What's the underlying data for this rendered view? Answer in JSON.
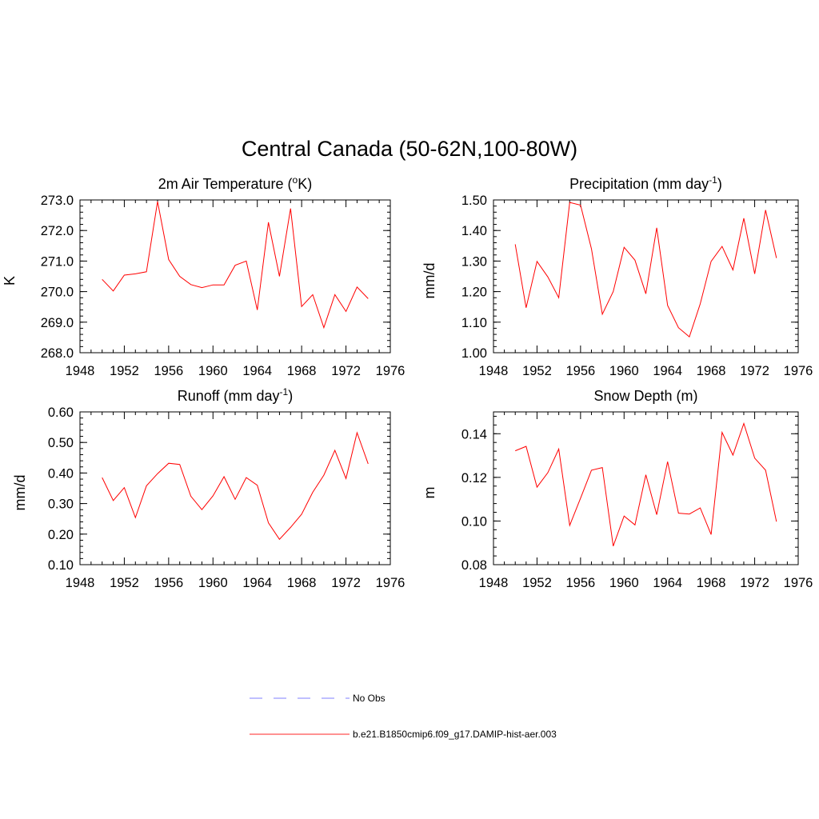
{
  "figure": {
    "title": "Central Canada (50-62N,100-80W)"
  },
  "chart_data": [
    {
      "type": "line",
      "title_main": "2m Air Temperature (",
      "title_sup": "o",
      "title_tail": "K)",
      "ylabel": "K",
      "xlim": [
        1948,
        1976
      ],
      "ylim": [
        268.0,
        273.0
      ],
      "xticks": [
        1948,
        1952,
        1956,
        1960,
        1964,
        1968,
        1972,
        1976
      ],
      "xtick_labels": [
        "1948",
        "1952",
        "1956",
        "1960",
        "1964",
        "1968",
        "1972",
        "1976"
      ],
      "yticks": [
        268.0,
        269.0,
        270.0,
        271.0,
        272.0,
        273.0
      ],
      "ytick_labels": [
        "268.0",
        "269.0",
        "270.0",
        "271.0",
        "272.0",
        "273.0"
      ],
      "yminor": 0.2,
      "x": [
        1950,
        1951,
        1952,
        1953,
        1954,
        1955,
        1956,
        1957,
        1958,
        1959,
        1960,
        1961,
        1962,
        1963,
        1964,
        1965,
        1966,
        1967,
        1968,
        1969,
        1970,
        1971,
        1972,
        1973,
        1974
      ],
      "values": [
        270.4,
        270.02,
        270.54,
        270.58,
        270.65,
        272.95,
        271.05,
        270.5,
        270.23,
        270.13,
        270.22,
        270.22,
        270.86,
        271.0,
        269.4,
        272.27,
        270.5,
        272.72,
        269.51,
        269.9,
        268.82,
        269.9,
        269.35,
        270.15,
        269.77
      ],
      "color": "#ff0000"
    },
    {
      "type": "line",
      "title_main": "Precipitation (mm day",
      "title_sup": "-1",
      "title_tail": ")",
      "ylabel": "mm/d",
      "xlim": [
        1948,
        1976
      ],
      "ylim": [
        1.0,
        1.5
      ],
      "xticks": [
        1948,
        1952,
        1956,
        1960,
        1964,
        1968,
        1972,
        1976
      ],
      "xtick_labels": [
        "1948",
        "1952",
        "1956",
        "1960",
        "1964",
        "1968",
        "1972",
        "1976"
      ],
      "yticks": [
        1.0,
        1.1,
        1.2,
        1.3,
        1.4,
        1.5
      ],
      "ytick_labels": [
        "1.00",
        "1.10",
        "1.20",
        "1.30",
        "1.40",
        "1.50"
      ],
      "yminor": 0.02,
      "x": [
        1950,
        1951,
        1952,
        1953,
        1954,
        1955,
        1956,
        1957,
        1958,
        1959,
        1960,
        1961,
        1962,
        1963,
        1964,
        1965,
        1966,
        1967,
        1968,
        1969,
        1970,
        1971,
        1972,
        1973,
        1974
      ],
      "values": [
        1.355,
        1.147,
        1.299,
        1.248,
        1.18,
        1.492,
        1.483,
        1.34,
        1.126,
        1.2,
        1.345,
        1.303,
        1.193,
        1.409,
        1.155,
        1.082,
        1.052,
        1.16,
        1.299,
        1.348,
        1.271,
        1.44,
        1.258,
        1.467,
        1.31
      ],
      "color": "#ff0000"
    },
    {
      "type": "line",
      "title_main": "Runoff (mm day",
      "title_sup": "-1",
      "title_tail": ")",
      "ylabel": "mm/d",
      "xlim": [
        1948,
        1976
      ],
      "ylim": [
        0.1,
        0.6
      ],
      "xticks": [
        1948,
        1952,
        1956,
        1960,
        1964,
        1968,
        1972,
        1976
      ],
      "xtick_labels": [
        "1948",
        "1952",
        "1956",
        "1960",
        "1964",
        "1968",
        "1972",
        "1976"
      ],
      "yticks": [
        0.1,
        0.2,
        0.3,
        0.4,
        0.5,
        0.6
      ],
      "ytick_labels": [
        "0.10",
        "0.20",
        "0.30",
        "0.40",
        "0.50",
        "0.60"
      ],
      "yminor": 0.02,
      "x": [
        1950,
        1951,
        1952,
        1953,
        1954,
        1955,
        1956,
        1957,
        1958,
        1959,
        1960,
        1961,
        1962,
        1963,
        1964,
        1965,
        1966,
        1967,
        1968,
        1969,
        1970,
        1971,
        1972,
        1973,
        1974
      ],
      "values": [
        0.385,
        0.31,
        0.352,
        0.254,
        0.358,
        0.398,
        0.432,
        0.428,
        0.324,
        0.28,
        0.325,
        0.388,
        0.314,
        0.385,
        0.36,
        0.237,
        0.183,
        0.222,
        0.265,
        0.337,
        0.393,
        0.474,
        0.382,
        0.532,
        0.43
      ],
      "color": "#ff0000"
    },
    {
      "type": "line",
      "title_main": "Snow Depth (m)",
      "title_sup": "",
      "title_tail": "",
      "ylabel": "m",
      "xlim": [
        1948,
        1976
      ],
      "ylim": [
        0.08,
        0.15
      ],
      "xticks": [
        1948,
        1952,
        1956,
        1960,
        1964,
        1968,
        1972,
        1976
      ],
      "xtick_labels": [
        "1948",
        "1952",
        "1956",
        "1960",
        "1964",
        "1968",
        "1972",
        "1976"
      ],
      "yticks": [
        0.08,
        0.1,
        0.12,
        0.14
      ],
      "ytick_labels": [
        "0.08",
        "0.10",
        "0.12",
        "0.14"
      ],
      "yminor": 0.004,
      "x": [
        1950,
        1951,
        1952,
        1953,
        1954,
        1955,
        1956,
        1957,
        1958,
        1959,
        1960,
        1961,
        1962,
        1963,
        1964,
        1965,
        1966,
        1967,
        1968,
        1969,
        1970,
        1971,
        1972,
        1973,
        1974
      ],
      "values": [
        0.1322,
        0.1342,
        0.1155,
        0.1222,
        0.133,
        0.098,
        0.1105,
        0.1233,
        0.1245,
        0.0885,
        0.1023,
        0.0982,
        0.1212,
        0.1029,
        0.1272,
        0.1036,
        0.1032,
        0.106,
        0.0938,
        0.1406,
        0.1302,
        0.1447,
        0.1288,
        0.1233,
        0.0997
      ],
      "color": "#ff0000"
    }
  ],
  "legend": {
    "items": [
      {
        "label": "No Obs",
        "style": "dashed",
        "color": "#9999ff"
      },
      {
        "label": "b.e21.B1850cmip6.f09_g17.DAMIP-hist-aer.003",
        "style": "solid",
        "color": "#ff5050"
      }
    ]
  }
}
